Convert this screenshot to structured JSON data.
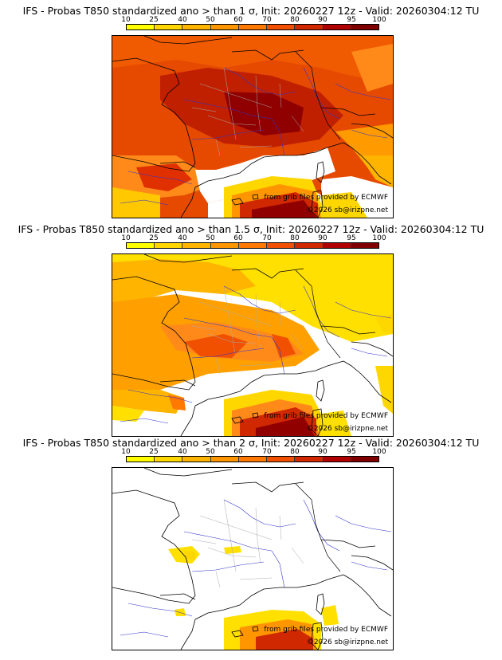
{
  "colorbar": {
    "ticks": [
      "10",
      "25",
      "40",
      "50",
      "60",
      "70",
      "80",
      "90",
      "95",
      "100"
    ],
    "colors": [
      "#ffff00",
      "#ffd700",
      "#ffb400",
      "#ff9600",
      "#ff7800",
      "#f05000",
      "#d02800",
      "#b00000",
      "#800000"
    ]
  },
  "panels": [
    {
      "title": "IFS - Probas T850  standardized ano > than 1 σ, Init: 20260227 12z - Valid: 20260304:12 TU"
    },
    {
      "title": "IFS - Probas T850  standardized ano > than 1.5 σ, Init: 20260227 12z - Valid: 20260304:12 TU"
    },
    {
      "title": "IFS - Probas T850  standardized ano > than 2 σ, Init: 20260227 12z - Valid: 20260304:12 TU"
    }
  ],
  "credits": {
    "source": "from grib files provided by ECMWF",
    "copyright": "©2026 sb@irizpne.net"
  }
}
